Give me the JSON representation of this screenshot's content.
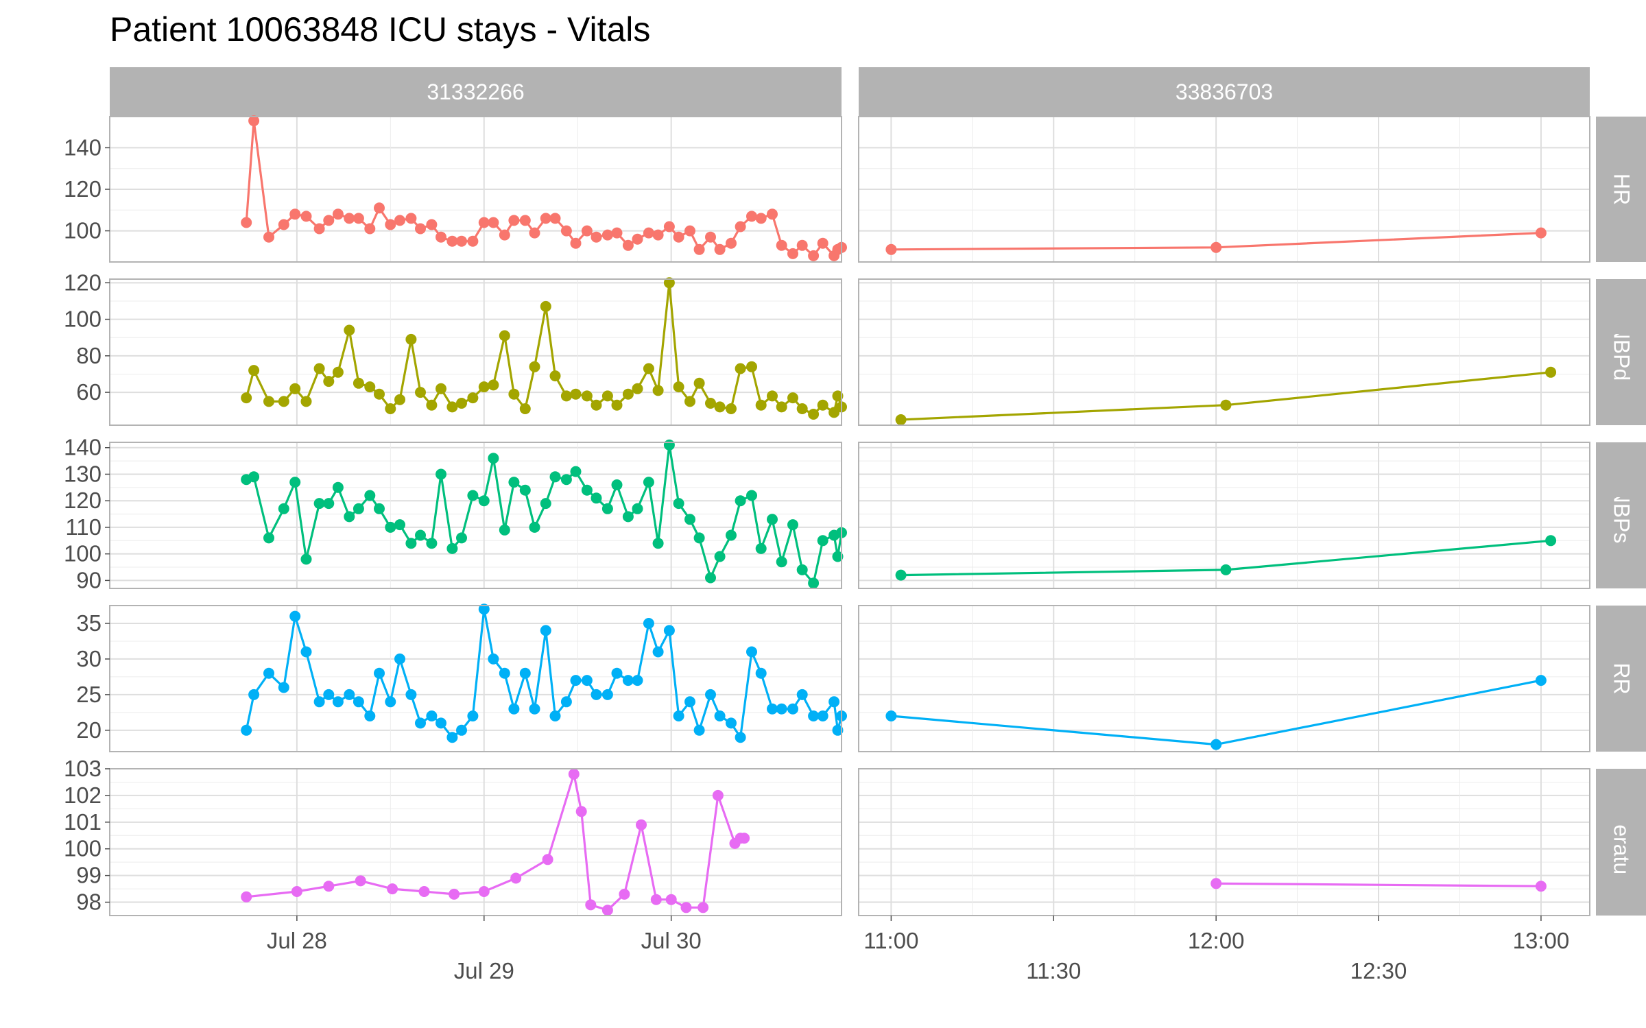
{
  "chart_data": {
    "type": "line",
    "title": "Patient 10063848 ICU stays - Vitals",
    "facets": {
      "columns": [
        "31332266",
        "33836703"
      ],
      "rows": [
        "HR",
        "NBPd",
        "NBPs",
        "RR",
        "Temperature F"
      ]
    },
    "x_axes": {
      "31332266": {
        "ticks": [
          {
            "label": "Jul 28",
            "t": 1.0,
            "row": "top"
          },
          {
            "label": "Jul 29",
            "t": 2.0,
            "row": "bottom"
          },
          {
            "label": "Jul 30",
            "t": 3.0,
            "row": "top"
          }
        ],
        "xlim": [
          0.0,
          3.91
        ]
      },
      "33836703": {
        "ticks": [
          {
            "label": "11:00",
            "t": 11.0,
            "row": "top"
          },
          {
            "label": "11:30",
            "t": 11.5,
            "row": "bottom"
          },
          {
            "label": "12:00",
            "t": 12.0,
            "row": "top"
          },
          {
            "label": "12:30",
            "t": 12.5,
            "row": "bottom"
          },
          {
            "label": "13:00",
            "t": 13.0,
            "row": "top"
          }
        ],
        "xlim": [
          10.9,
          13.15
        ]
      }
    },
    "y_axes": {
      "HR": {
        "ticks": [
          100,
          120,
          140
        ],
        "ylim": [
          85,
          155
        ]
      },
      "NBPd": {
        "ticks": [
          60,
          80,
          100,
          120
        ],
        "ylim": [
          42,
          122
        ]
      },
      "NBPs": {
        "ticks": [
          90,
          100,
          110,
          120,
          130,
          140
        ],
        "ylim": [
          87,
          142
        ]
      },
      "RR": {
        "ticks": [
          20,
          25,
          30,
          35
        ],
        "ylim": [
          17,
          37.5
        ]
      },
      "Temperature F": {
        "ticks": [
          98,
          99,
          100,
          101,
          102,
          103
        ],
        "ylim": [
          97.5,
          103
        ]
      }
    },
    "series": [
      {
        "name": "HR",
        "color": "#F8766D",
        "facet": "31332266",
        "x": [
          0.73,
          0.77,
          0.85,
          0.93,
          0.99,
          1.05,
          1.12,
          1.17,
          1.22,
          1.28,
          1.33,
          1.39,
          1.44,
          1.5,
          1.55,
          1.61,
          1.66,
          1.72,
          1.77,
          1.83,
          1.88,
          1.94,
          2.0,
          2.05,
          2.11,
          2.16,
          2.22,
          2.27,
          2.33,
          2.38,
          2.44,
          2.49,
          2.55,
          2.6,
          2.66,
          2.71,
          2.77,
          2.82,
          2.88,
          2.93,
          2.99,
          3.04,
          3.1,
          3.15,
          3.21,
          3.26,
          3.32,
          3.37,
          3.43,
          3.48,
          3.54,
          3.59,
          3.65,
          3.7,
          3.76,
          3.81,
          3.87,
          3.89,
          3.91
        ],
        "y": [
          104,
          153,
          97,
          103,
          108,
          107,
          101,
          105,
          108,
          106,
          106,
          101,
          111,
          103,
          105,
          106,
          101,
          103,
          97,
          95,
          95,
          95,
          104,
          104,
          98,
          105,
          105,
          99,
          106,
          106,
          100,
          94,
          100,
          97,
          98,
          99,
          93,
          96,
          99,
          98,
          102,
          97,
          100,
          91,
          97,
          91,
          94,
          102,
          107,
          106,
          108,
          93,
          89,
          93,
          88,
          94,
          88,
          91,
          92
        ]
      },
      {
        "name": "HR",
        "color": "#F8766D",
        "facet": "33836703",
        "x": [
          11.0,
          12.0,
          13.0
        ],
        "y": [
          91,
          92,
          99
        ]
      },
      {
        "name": "NBPd",
        "color": "#A3A500",
        "facet": "31332266",
        "x": [
          0.73,
          0.77,
          0.85,
          0.93,
          0.99,
          1.05,
          1.12,
          1.17,
          1.22,
          1.28,
          1.33,
          1.39,
          1.44,
          1.5,
          1.55,
          1.61,
          1.66,
          1.72,
          1.77,
          1.83,
          1.88,
          1.94,
          2.0,
          2.05,
          2.11,
          2.16,
          2.22,
          2.27,
          2.33,
          2.38,
          2.44,
          2.49,
          2.55,
          2.6,
          2.66,
          2.71,
          2.77,
          2.82,
          2.88,
          2.93,
          2.99,
          3.04,
          3.1,
          3.15,
          3.21,
          3.26,
          3.32,
          3.37,
          3.43,
          3.48,
          3.54,
          3.59,
          3.65,
          3.7,
          3.76,
          3.81,
          3.87,
          3.89,
          3.91
        ],
        "y": [
          57,
          72,
          55,
          55,
          62,
          55,
          73,
          66,
          71,
          94,
          65,
          63,
          59,
          51,
          56,
          89,
          60,
          53,
          62,
          52,
          54,
          57,
          63,
          64,
          91,
          59,
          51,
          74,
          107,
          69,
          58,
          59,
          58,
          53,
          58,
          53,
          59,
          62,
          73,
          61,
          120,
          63,
          55,
          65,
          54,
          52,
          51,
          73,
          74,
          53,
          58,
          52,
          57,
          51,
          48,
          53,
          49,
          58,
          52
        ]
      },
      {
        "name": "NBPd",
        "color": "#A3A500",
        "facet": "33836703",
        "x": [
          11.03,
          12.03,
          13.03
        ],
        "y": [
          45,
          53,
          71
        ]
      },
      {
        "name": "NBPs",
        "color": "#00BF7D",
        "facet": "31332266",
        "x": [
          0.73,
          0.77,
          0.85,
          0.93,
          0.99,
          1.05,
          1.12,
          1.17,
          1.22,
          1.28,
          1.33,
          1.39,
          1.44,
          1.5,
          1.55,
          1.61,
          1.66,
          1.72,
          1.77,
          1.83,
          1.88,
          1.94,
          2.0,
          2.05,
          2.11,
          2.16,
          2.22,
          2.27,
          2.33,
          2.38,
          2.44,
          2.49,
          2.55,
          2.6,
          2.66,
          2.71,
          2.77,
          2.82,
          2.88,
          2.93,
          2.99,
          3.04,
          3.1,
          3.15,
          3.21,
          3.26,
          3.32,
          3.37,
          3.43,
          3.48,
          3.54,
          3.59,
          3.65,
          3.7,
          3.76,
          3.81,
          3.87,
          3.89,
          3.91
        ],
        "y": [
          128,
          129,
          106,
          117,
          127,
          98,
          119,
          119,
          125,
          114,
          117,
          122,
          117,
          110,
          111,
          104,
          107,
          104,
          130,
          102,
          106,
          122,
          120,
          136,
          109,
          127,
          124,
          110,
          119,
          129,
          128,
          131,
          124,
          121,
          117,
          126,
          114,
          117,
          127,
          104,
          141,
          119,
          113,
          106,
          91,
          99,
          107,
          120,
          122,
          102,
          113,
          97,
          111,
          94,
          89,
          105,
          107,
          99,
          108
        ]
      },
      {
        "name": "NBPs",
        "color": "#00BF7D",
        "facet": "33836703",
        "x": [
          11.03,
          12.03,
          13.03
        ],
        "y": [
          92,
          94,
          105
        ]
      },
      {
        "name": "RR",
        "color": "#00B0F6",
        "facet": "31332266",
        "x": [
          0.73,
          0.77,
          0.85,
          0.93,
          0.99,
          1.05,
          1.12,
          1.17,
          1.22,
          1.28,
          1.33,
          1.39,
          1.44,
          1.5,
          1.55,
          1.61,
          1.66,
          1.72,
          1.77,
          1.83,
          1.88,
          1.94,
          2.0,
          2.05,
          2.11,
          2.16,
          2.22,
          2.27,
          2.33,
          2.38,
          2.44,
          2.49,
          2.55,
          2.6,
          2.66,
          2.71,
          2.77,
          2.82,
          2.88,
          2.93,
          2.99,
          3.04,
          3.1,
          3.15,
          3.21,
          3.26,
          3.32,
          3.37,
          3.43,
          3.48,
          3.54,
          3.59,
          3.65,
          3.7,
          3.76,
          3.81,
          3.87,
          3.89,
          3.91
        ],
        "y": [
          20,
          25,
          28,
          26,
          36,
          31,
          24,
          25,
          24,
          25,
          24,
          22,
          28,
          24,
          30,
          25,
          21,
          22,
          21,
          19,
          20,
          22,
          37,
          30,
          28,
          23,
          28,
          23,
          34,
          22,
          24,
          27,
          27,
          25,
          25,
          28,
          27,
          27,
          35,
          31,
          34,
          22,
          24,
          20,
          25,
          22,
          21,
          19,
          31,
          28,
          23,
          23,
          23,
          25,
          22,
          22,
          24,
          20,
          22
        ]
      },
      {
        "name": "RR",
        "color": "#00B0F6",
        "facet": "33836703",
        "x": [
          11.0,
          12.0,
          13.0
        ],
        "y": [
          22,
          18,
          27
        ]
      },
      {
        "name": "Temperature F",
        "color": "#E76BF3",
        "facet": "31332266",
        "x": [
          0.73,
          1.0,
          1.17,
          1.34,
          1.51,
          1.68,
          1.84,
          2.0,
          2.17,
          2.34,
          2.48,
          2.52,
          2.57,
          2.66,
          2.75,
          2.84,
          2.92,
          3.0,
          3.08,
          3.17,
          3.25,
          3.34,
          3.37,
          3.39
        ],
        "y": [
          98.2,
          98.4,
          98.6,
          98.8,
          98.5,
          98.4,
          98.3,
          98.4,
          98.9,
          99.6,
          102.8,
          101.4,
          97.9,
          97.7,
          98.3,
          100.9,
          98.1,
          98.1,
          97.8,
          97.8,
          102.0,
          100.2,
          100.4,
          100.4
        ]
      },
      {
        "name": "Temperature F",
        "color": "#E76BF3",
        "facet": "33836703",
        "x": [
          12.0,
          13.0
        ],
        "y": [
          98.7,
          98.6
        ]
      }
    ]
  }
}
